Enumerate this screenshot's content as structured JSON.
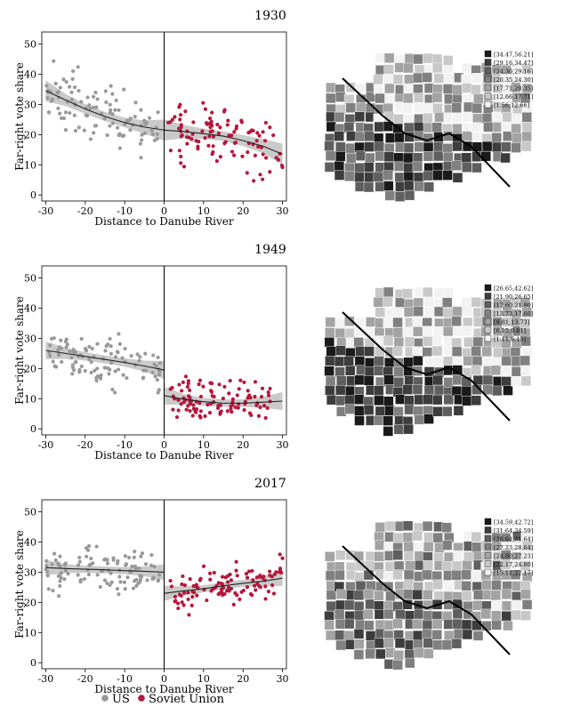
{
  "figure": {
    "legend": [
      {
        "label": "US",
        "color": "#999999"
      },
      {
        "label": "Soviet Union",
        "color": "#b5173b"
      }
    ]
  },
  "chart_data": [
    {
      "type": "scatter",
      "title": "1930",
      "xlabel": "Distance to Danube River",
      "ylabel": "Far-right vote share",
      "xlim": [
        -31,
        31
      ],
      "ylim": [
        -2,
        54
      ],
      "xticks": [
        -30,
        -20,
        -10,
        0,
        10,
        20,
        30
      ],
      "yticks": [
        0,
        10,
        20,
        30,
        40,
        50
      ],
      "cutoff": 0,
      "series": [
        {
          "name": "US",
          "color": "#999999",
          "side": "left",
          "fit": [
            [
              -30,
              34.5
            ],
            [
              -25,
              31.5
            ],
            [
              -20,
              28.5
            ],
            [
              -15,
              26.0
            ],
            [
              -10,
              24.0
            ],
            [
              -5,
              22.5
            ],
            [
              0,
              21.5
            ]
          ],
          "ci_halfwidth": [
            3.5,
            2.0,
            1.6,
            1.5,
            1.6,
            2.2,
            3.5
          ]
        },
        {
          "name": "Soviet Union",
          "color": "#b5173b",
          "side": "right",
          "fit": [
            [
              0,
              21.5
            ],
            [
              5,
              21.0
            ],
            [
              10,
              20.3
            ],
            [
              15,
              19.5
            ],
            [
              20,
              18.0
            ],
            [
              25,
              16.2
            ],
            [
              30,
              13.5
            ]
          ],
          "ci_halfwidth": [
            3.5,
            2.2,
            1.7,
            1.6,
            1.8,
            2.4,
            3.5
          ]
        }
      ],
      "map_legend": [
        "[34.47,56.21]",
        "[29.16,34.47]",
        "[24.30,29.16]",
        "[20.35,24.30]",
        "[17.71,20.35]",
        "[12.66,17.71]",
        "[1.56,12.66]"
      ]
    },
    {
      "type": "scatter",
      "title": "1949",
      "xlabel": "Distance to Danube River",
      "ylabel": "Far-right vote share",
      "xlim": [
        -31,
        31
      ],
      "ylim": [
        -2,
        54
      ],
      "xticks": [
        -30,
        -20,
        -10,
        0,
        10,
        20,
        30
      ],
      "yticks": [
        0,
        10,
        20,
        30,
        40,
        50
      ],
      "cutoff": 0,
      "series": [
        {
          "name": "US",
          "color": "#999999",
          "side": "left",
          "fit": [
            [
              -30,
              26.0
            ],
            [
              -25,
              25.0
            ],
            [
              -20,
              24.0
            ],
            [
              -15,
              23.0
            ],
            [
              -10,
              22.0
            ],
            [
              -5,
              20.8
            ],
            [
              0,
              19.5
            ]
          ],
          "ci_halfwidth": [
            3.0,
            1.8,
            1.4,
            1.3,
            1.4,
            1.8,
            3.0
          ]
        },
        {
          "name": "Soviet Union",
          "color": "#b5173b",
          "side": "right",
          "fit": [
            [
              0,
              11.0
            ],
            [
              5,
              9.8
            ],
            [
              10,
              9.0
            ],
            [
              15,
              8.5
            ],
            [
              20,
              8.5
            ],
            [
              25,
              8.8
            ],
            [
              30,
              9.2
            ]
          ],
          "ci_halfwidth": [
            3.0,
            1.7,
            1.3,
            1.2,
            1.3,
            1.8,
            3.0
          ]
        }
      ],
      "map_legend": [
        "[26.65,42.62]",
        "[21.90,26.65]",
        "[17.60,21.90]",
        "[13.73,17.60]",
        "[9.81,13.73]",
        "[6.15,9.81]",
        "[1.11,6.15]"
      ]
    },
    {
      "type": "scatter",
      "title": "2017",
      "xlabel": "Distance to Danube River",
      "ylabel": "Far-right vote share",
      "xlim": [
        -31,
        31
      ],
      "ylim": [
        -2,
        54
      ],
      "xticks": [
        -30,
        -20,
        -10,
        0,
        10,
        20,
        30
      ],
      "yticks": [
        0,
        10,
        20,
        30,
        40,
        50
      ],
      "cutoff": 0,
      "series": [
        {
          "name": "US",
          "color": "#999999",
          "side": "left",
          "fit": [
            [
              -30,
              31.5
            ],
            [
              -25,
              31.2
            ],
            [
              -20,
              31.0
            ],
            [
              -15,
              30.8
            ],
            [
              -10,
              30.5
            ],
            [
              -5,
              30.3
            ],
            [
              0,
              30.0
            ]
          ],
          "ci_halfwidth": [
            2.6,
            1.5,
            1.2,
            1.1,
            1.2,
            1.6,
            2.6
          ]
        },
        {
          "name": "Soviet Union",
          "color": "#b5173b",
          "side": "right",
          "fit": [
            [
              0,
              23.0
            ],
            [
              5,
              23.8
            ],
            [
              10,
              24.5
            ],
            [
              15,
              25.5
            ],
            [
              20,
              26.3
            ],
            [
              25,
              27.0
            ],
            [
              30,
              28.0
            ]
          ],
          "ci_halfwidth": [
            2.6,
            1.5,
            1.2,
            1.1,
            1.2,
            1.6,
            2.6
          ]
        }
      ],
      "map_legend": [
        "[34.59,42.72]",
        "[31.64,34.59]",
        "[28.64,31.64]",
        "[27.23,28.64]",
        "[24.80,27.23]",
        "[22.17,24.80]",
        "[15.11,22.17]"
      ]
    }
  ]
}
